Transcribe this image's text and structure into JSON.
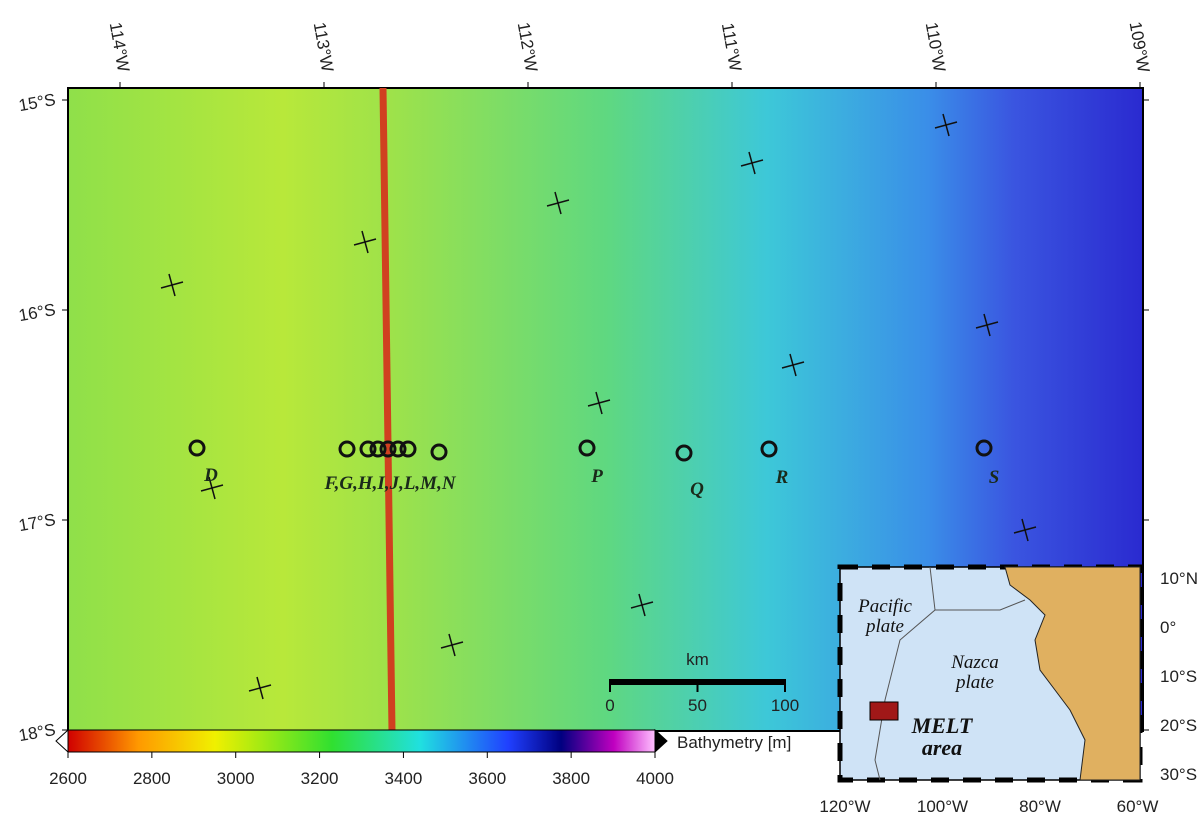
{
  "map": {
    "longitude_labels": [
      "114°W",
      "113°W",
      "112°W",
      "111°W",
      "110°W",
      "109°W"
    ],
    "latitude_labels": [
      "15°S",
      "16°S",
      "17°S",
      "18°S"
    ],
    "site_labels": [
      "D",
      "F,G,H,I,J,L,M,N",
      "P",
      "Q",
      "R",
      "S"
    ],
    "scale_bar": {
      "unit": "km",
      "ticks": [
        0,
        50,
        100
      ]
    },
    "colorbar": {
      "label": "Bathymetry [m]",
      "range": [
        2600,
        4000
      ],
      "ticks": [
        2600,
        2800,
        3000,
        3200,
        3400,
        3600,
        3800,
        4000
      ]
    },
    "inset": {
      "plate_labels": [
        "Pacific plate",
        "Nazca plate"
      ],
      "area_label": "MELT area",
      "latitude_labels": [
        "10°N",
        "0°",
        "10°S",
        "20°S",
        "30°S"
      ],
      "longitude_labels": [
        "120°W",
        "100°W",
        "80°W",
        "60°W"
      ]
    }
  }
}
